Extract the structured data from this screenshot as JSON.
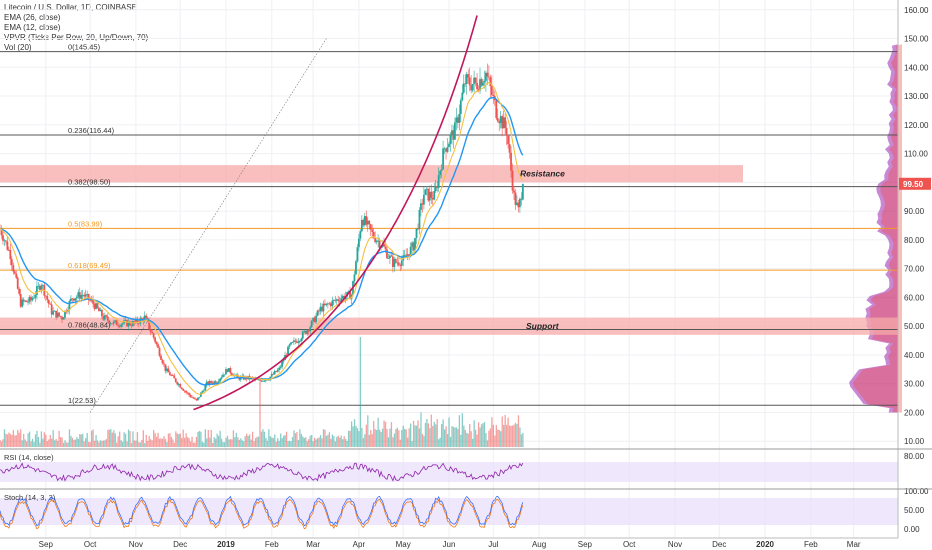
{
  "legend": {
    "title": "Litecoin / U.S. Dollar, 1D, COINBASE",
    "ema1": "EMA (26, close)",
    "ema2": "EMA (12, close)",
    "vpvr": "VPVR (Ticks Per Row, 20, Up/Down, 70)",
    "vol": "Vol (20)"
  },
  "rsi_label": "RSI (14, close)",
  "stoch_label": "Stoch (14, 3, 3)",
  "colors": {
    "up": "#26a69a",
    "down": "#ef5350",
    "ema_long": "#2196f3",
    "ema_short": "#f5c040",
    "fib_grey": "#555555",
    "fib_orange": "#f59a23",
    "zone": "#f7a9a9",
    "curve": "#c2185b",
    "price_tag": "#ef5350",
    "osc_fill": "#e8ddfb"
  },
  "chart_data": [
    {
      "type": "candlestick",
      "title": "Litecoin / U.S. Dollar, 1D, COINBASE",
      "y_ticks": [
        "160.00",
        "150.00",
        "140.00",
        "130.00",
        "120.00",
        "110.00",
        "100.00",
        "90.00",
        "80.00",
        "70.00",
        "60.00",
        "50.00",
        "40.00",
        "30.00",
        "20.00",
        "10.00"
      ],
      "x_ticks": [
        "Sep",
        "Oct",
        "Nov",
        "Dec",
        "2019",
        "Feb",
        "Mar",
        "Apr",
        "May",
        "Jun",
        "Jul",
        "Aug",
        "Sep",
        "Oct",
        "Nov",
        "Dec",
        "2020",
        "Feb",
        "Mar"
      ],
      "ylim": [
        8,
        162
      ],
      "last_price": "99.50",
      "price_path": [
        [
          "2018-08-01",
          84
        ],
        [
          "2018-08-08",
          75
        ],
        [
          "2018-08-15",
          58
        ],
        [
          "2018-08-22",
          59
        ],
        [
          "2018-08-29",
          65
        ],
        [
          "2018-09-05",
          55
        ],
        [
          "2018-09-12",
          53
        ],
        [
          "2018-09-19",
          60
        ],
        [
          "2018-09-26",
          61
        ],
        [
          "2018-10-03",
          58
        ],
        [
          "2018-10-10",
          53
        ],
        [
          "2018-10-17",
          51
        ],
        [
          "2018-10-24",
          51
        ],
        [
          "2018-10-31",
          51
        ],
        [
          "2018-11-07",
          53
        ],
        [
          "2018-11-14",
          45
        ],
        [
          "2018-11-21",
          35
        ],
        [
          "2018-11-28",
          31
        ],
        [
          "2018-12-05",
          27
        ],
        [
          "2018-12-12",
          24
        ],
        [
          "2018-12-19",
          30
        ],
        [
          "2018-12-26",
          31
        ],
        [
          "2019-01-02",
          35
        ],
        [
          "2019-01-09",
          32
        ],
        [
          "2019-01-16",
          32
        ],
        [
          "2019-01-23",
          31
        ],
        [
          "2019-01-30",
          32
        ],
        [
          "2019-02-06",
          35
        ],
        [
          "2019-02-13",
          43
        ],
        [
          "2019-02-20",
          46
        ],
        [
          "2019-02-27",
          50
        ],
        [
          "2019-03-06",
          56
        ],
        [
          "2019-03-13",
          58
        ],
        [
          "2019-03-20",
          60
        ],
        [
          "2019-03-27",
          61
        ],
        [
          "2019-04-03",
          88
        ],
        [
          "2019-04-10",
          82
        ],
        [
          "2019-04-17",
          78
        ],
        [
          "2019-04-24",
          72
        ],
        [
          "2019-05-01",
          73
        ],
        [
          "2019-05-08",
          78
        ],
        [
          "2019-05-15",
          96
        ],
        [
          "2019-05-22",
          95
        ],
        [
          "2019-05-29",
          112
        ],
        [
          "2019-06-05",
          118
        ],
        [
          "2019-06-12",
          135
        ],
        [
          "2019-06-19",
          134
        ],
        [
          "2019-06-26",
          138
        ],
        [
          "2019-07-03",
          125
        ],
        [
          "2019-07-10",
          118
        ],
        [
          "2019-07-15",
          95
        ],
        [
          "2019-07-18",
          90
        ],
        [
          "2019-07-21",
          99.5
        ]
      ],
      "volume_peaks": [
        {
          "date": "2019-04-02",
          "value": "spike"
        }
      ],
      "fib_levels": [
        {
          "label": "0(145.45)",
          "value": 145.45
        },
        {
          "label": "0.236(116.44)",
          "value": 116.44
        },
        {
          "label": "0.382(98.50)",
          "value": 98.5
        },
        {
          "label": "0.5(83.99)",
          "value": 83.99
        },
        {
          "label": "0.618(69.49)",
          "value": 69.49
        },
        {
          "label": "0.786(48.84)",
          "value": 48.84
        },
        {
          "label": "1(22.53)",
          "value": 22.53
        }
      ],
      "zones": [
        {
          "label": "Resistance",
          "from": 100,
          "to": 106
        },
        {
          "label": "Support",
          "from": 47,
          "to": 53
        }
      ]
    },
    {
      "type": "line",
      "title": "RSI (14, close)",
      "y_ticks": [
        "80.00"
      ]
    },
    {
      "type": "line",
      "title": "Stoch (14, 3, 3)",
      "y_ticks": [
        "100.00",
        "50.00",
        "0.00"
      ]
    }
  ]
}
